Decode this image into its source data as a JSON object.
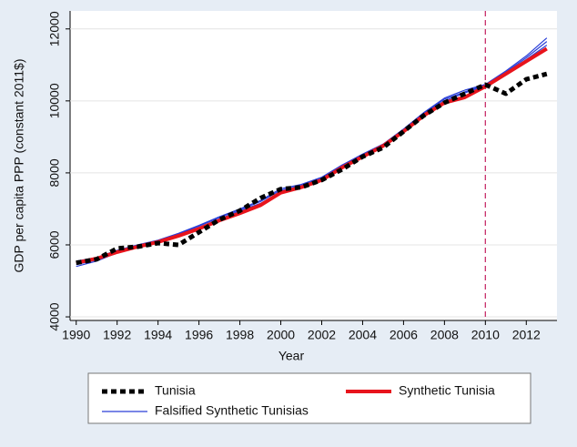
{
  "chart_data": {
    "type": "line",
    "xlabel": "Year",
    "ylabel": "GDP per capita PPP (constant 2011$)",
    "x": [
      1990,
      1991,
      1992,
      1993,
      1994,
      1995,
      1996,
      1997,
      1998,
      1999,
      2000,
      2001,
      2002,
      2003,
      2004,
      2005,
      2006,
      2007,
      2008,
      2009,
      2010,
      2011,
      2012,
      2013
    ],
    "series": [
      {
        "name": "Tunisia",
        "color": "#000000",
        "dash": true,
        "values": [
          5500,
          5600,
          5900,
          5950,
          6050,
          6000,
          6350,
          6700,
          6950,
          7300,
          7550,
          7600,
          7800,
          8100,
          8450,
          8700,
          9150,
          9600,
          9950,
          10200,
          10450,
          10200,
          10600,
          10750
        ]
      },
      {
        "name": "Synthetic Tunisia",
        "color": "#e8141c",
        "values": [
          5500,
          5620,
          5800,
          5950,
          6080,
          6250,
          6450,
          6680,
          6880,
          7100,
          7450,
          7600,
          7800,
          8150,
          8450,
          8750,
          9150,
          9600,
          9950,
          10100,
          10400,
          10750,
          11100,
          11450
        ]
      },
      {
        "name": "Falsified Synthetic Tunisias",
        "color": "#2a3fd8",
        "values": [
          5450,
          5580,
          5820,
          5980,
          6120,
          6300,
          6520,
          6760,
          6980,
          7200,
          7520,
          7650,
          7850,
          8200,
          8500,
          8780,
          9200,
          9650,
          10050,
          10250,
          10450,
          10800,
          11200,
          11650
        ]
      },
      {
        "color": "#2a3fd8",
        "values": [
          5400,
          5550,
          5780,
          5940,
          6070,
          6260,
          6480,
          6720,
          6950,
          7150,
          7480,
          7620,
          7820,
          8180,
          8480,
          8750,
          9180,
          9620,
          10000,
          10220,
          10420,
          10780,
          11150,
          11550
        ]
      },
      {
        "color": "#2a3fd8",
        "values": [
          5550,
          5650,
          5850,
          6000,
          6130,
          6320,
          6540,
          6780,
          7000,
          7230,
          7560,
          7680,
          7880,
          8220,
          8520,
          8800,
          9220,
          9680,
          10080,
          10300,
          10460,
          10830,
          11250,
          11750
        ]
      }
    ],
    "xlim": [
      1989.7,
      2013.5
    ],
    "ylim": [
      3900,
      12500
    ],
    "xticks": [
      1990,
      1992,
      1994,
      1996,
      1998,
      2000,
      2002,
      2004,
      2006,
      2008,
      2010,
      2012
    ],
    "yticks": [
      4000,
      6000,
      8000,
      10000,
      12000
    ],
    "grid": true,
    "vline": 2010,
    "vline_color": "#c8306a",
    "legend": "bottom"
  }
}
